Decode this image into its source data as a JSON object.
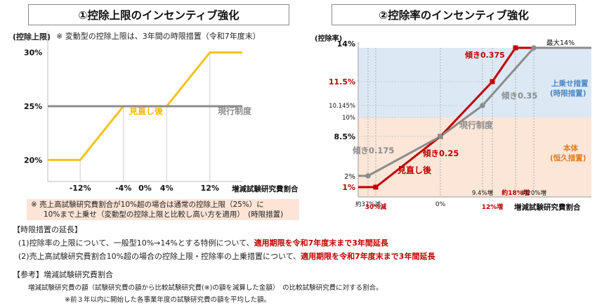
{
  "titles": {
    "left": "①控除上限のインセンティブ強化",
    "right": "②控除率のインセンティブ強化"
  },
  "left_note_top": "※ 変動型の控除上限は、3年間の時限措置（令和7年度末）",
  "left_bottom_note": {
    "line1": "※ 売上高試験研究費割合が10%超の場合は通常の控除上限（25%）に",
    "line2": "10%まで上乗せ（変動型の控除上限と比較し高い方を適用）　(時限措置)"
  },
  "colors": {
    "yellow": "#f5c218",
    "gray": "#8c8c8c",
    "red": "#c00000",
    "blue_band": "#dce9f5",
    "peach_band": "#fbe6d8",
    "label_blue": "#4a86c5",
    "label_orange": "#e07b1f"
  },
  "chart_data": [
    {
      "type": "line",
      "title": "①控除上限のインセンティブ強化",
      "ylabel": "(控除上限)",
      "xlabel": "増減試験研究費割合",
      "x_ticks": [
        "-12%",
        "-4%",
        "0%",
        "4%",
        "12%"
      ],
      "y_ticks": [
        "20%",
        "25%",
        "30%"
      ],
      "xlim": [
        -18,
        18
      ],
      "ylim": [
        18,
        32
      ],
      "series": [
        {
          "name": "見直し後",
          "color": "#f5c218",
          "points": [
            [
              -18,
              20
            ],
            [
              -12,
              20
            ],
            [
              -4,
              25
            ],
            [
              4,
              25
            ],
            [
              12,
              30
            ],
            [
              18,
              30
            ]
          ]
        },
        {
          "name": "現行制度",
          "color": "#8c8c8c",
          "points": [
            [
              -18,
              25
            ],
            [
              18,
              25
            ]
          ]
        }
      ]
    },
    {
      "type": "line",
      "title": "②控除率のインセンティブ強化",
      "ylabel": "(控除率)",
      "xlabel": "増減試験研究費割合",
      "y_ticks": [
        "1%",
        "2%",
        "8.5%",
        "10%",
        "10.145%",
        "11.5%",
        "14%"
      ],
      "x_ticks": [
        "約37%減",
        "30%減",
        "0%",
        "9.4%増",
        "12%増",
        "約18%増",
        "約20%増"
      ],
      "x_values": [
        -37,
        -30,
        0,
        9.4,
        12,
        18,
        20
      ],
      "series": [
        {
          "name": "見直し後",
          "color": "#c00000",
          "points": [
            [
              -40,
              1
            ],
            [
              -30,
              1
            ],
            [
              0,
              8.5
            ],
            [
              12,
              11.5
            ],
            [
              18,
              14
            ],
            [
              23,
              14
            ]
          ]
        },
        {
          "name": "現行制度",
          "color": "#8c8c8c",
          "points": [
            [
              -40,
              2
            ],
            [
              -37,
              2
            ],
            [
              0,
              8.5
            ],
            [
              9.4,
              10.145
            ],
            [
              20,
              14
            ],
            [
              23,
              14
            ]
          ]
        }
      ],
      "bands": [
        {
          "from": 10,
          "to": 14,
          "label": "上乗せ措置\n(時限措置)"
        },
        {
          "from": 0,
          "to": 10,
          "label": "本体\n(恒久措置)"
        }
      ],
      "annotations": [
        "最大14%",
        "傾き0.375",
        "傾き0.35",
        "傾き0.175",
        "傾き0.25",
        "見直し後",
        "現行制度"
      ]
    }
  ],
  "left_labels": {
    "revised": "見直し後",
    "current": "現行制度"
  },
  "right_labels": {
    "max": "最大14%",
    "slope_0375": "傾き0.375",
    "slope_035": "傾き0.35",
    "slope_0175": "傾き0.175",
    "slope_025": "傾き0.25",
    "revised": "見直し後",
    "current": "現行制度",
    "band_top_l1": "上乗せ措置",
    "band_top_l2": "(時限措置)",
    "band_bot_l1": "本体",
    "band_bot_l2": "(恒久措置)"
  },
  "extension": {
    "heading": "【時限措置の延長】",
    "item1_plain": "(1)控除率の上限について、一般型10%→14%とする特例について、",
    "item1_red": "適用期限を令和7年度末まで3年間延長",
    "item2_plain": "(2)売上高試験研究費割合10%超の場合の控除上限・控除率の上乗措置について、",
    "item2_red": "適用期限を令和7年度末まで3年間延長"
  },
  "reference": {
    "heading": "【参考】増減試験研究費割合",
    "def": "増減試験研究費の額（試験研究費の額から比較試験研究費(※)の額を減算した金額）　の比較試験研究費に対する割合。",
    "note": "※前３年以内に開始した各事業年度の試験研究費の額を平均した額。"
  }
}
